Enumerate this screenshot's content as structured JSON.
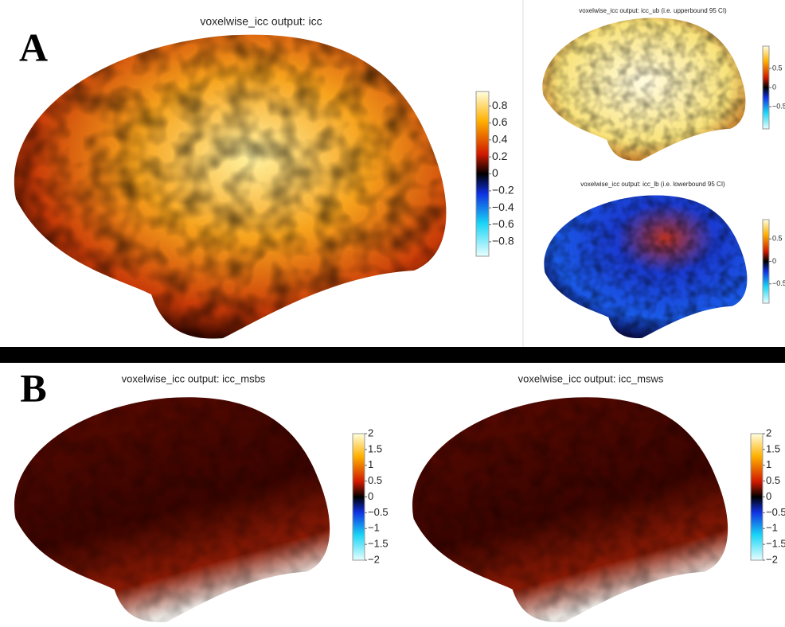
{
  "labels": {
    "a": "A",
    "b": "B"
  },
  "panels": [
    {
      "title": "voxelwise_icc output: icc",
      "lim": [
        -0.97,
        0.97
      ],
      "ticks": [
        0.8,
        0.6,
        0.4,
        0.2,
        0,
        {
          "value": -0.2,
          "label": "−0.2"
        },
        {
          "value": -0.4,
          "label": "−0.4"
        },
        {
          "value": -0.6,
          "label": "−0.6"
        },
        {
          "value": -0.8,
          "label": "−0.8"
        }
      ]
    },
    {
      "title": "voxelwise_icc output: icc_ub (i.e. upperbound 95 CI)",
      "lim": [
        -1.08,
        1.08
      ],
      "ticks": [
        0.5,
        0,
        {
          "value": -0.5,
          "label": "−0.5"
        }
      ]
    },
    {
      "title": "voxelwise_icc output: icc_lb (i.e. lowerbound 95 CI)",
      "lim": [
        -0.93,
        0.93
      ],
      "ticks": [
        0.5,
        0,
        {
          "value": -0.5,
          "label": "−0.5"
        }
      ]
    },
    {
      "title": "voxelwise_icc output: icc_msbs",
      "lim": [
        -2,
        2
      ],
      "ticks": [
        2,
        1.5,
        1,
        0.5,
        0,
        {
          "value": -0.5,
          "label": "−0.5"
        },
        {
          "value": -1,
          "label": "−1"
        },
        {
          "value": -1.5,
          "label": "−1.5"
        },
        {
          "value": -2,
          "label": "−2"
        }
      ]
    },
    {
      "title": "voxelwise_icc output: icc_msws",
      "lim": [
        -2,
        2
      ],
      "ticks": [
        2,
        1.5,
        1,
        0.5,
        0,
        {
          "value": -0.5,
          "label": "−0.5"
        },
        {
          "value": -1,
          "label": "−1"
        },
        {
          "value": -1.5,
          "label": "−1.5"
        },
        {
          "value": -2,
          "label": "−2"
        }
      ]
    }
  ]
}
